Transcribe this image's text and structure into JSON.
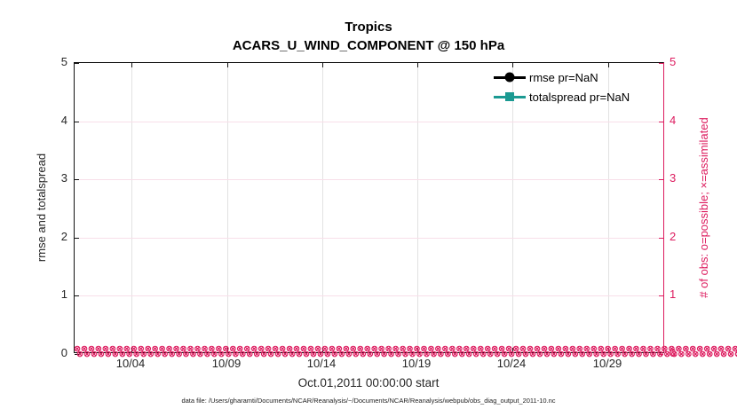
{
  "figure": {
    "title_line1": "Tropics",
    "title_line2": "ACARS_U_WIND_COMPONENT @ 150 hPa",
    "xlabel": "Oct.01,2011 00:00:00 start",
    "ylabel_left": "rmse and totalspread",
    "ylabel_right": "# of obs: o=possible; ×=assimilated",
    "footer": "data file: /Users/gharamti/Documents/NCAR/Reanalysis/~/Documents/NCAR/Reanalysis/webpub/obs_diag_output_2011-10.nc",
    "legend": [
      {
        "label": "rmse pr=NaN",
        "color": "#000000",
        "marker": "filled-circle"
      },
      {
        "label": "totalspread pr=NaN",
        "color": "#1b9a92",
        "marker": "filled-square"
      }
    ],
    "colors": {
      "right_axis_pink": "#dd1c5f",
      "totalspread_teal": "#1b9a92",
      "vertical_grid": "#e2e2e2",
      "horizontal_grid": "#f8dfe9"
    },
    "obs_band": {
      "glyph": "⊗",
      "rows": 2,
      "per_row": 95
    }
  },
  "chart_data": {
    "type": "line",
    "title": "Tropics",
    "subtitle": "ACARS_U_WIND_COMPONENT @ 150 hPa",
    "xlabel": "Oct.01,2011 00:00:00 start",
    "ylabel_left": "rmse and totalspread",
    "ylabel_right": "# of obs: o=possible; ×=assimilated",
    "ylim_left": [
      0,
      5
    ],
    "ylim_right": [
      0,
      5
    ],
    "y_ticks_left": [
      0,
      1,
      2,
      3,
      4,
      5
    ],
    "y_ticks_right": [
      0,
      1,
      2,
      3,
      4,
      5
    ],
    "x_axis": {
      "start": "2011-10-01 00:00:00",
      "span_days": 31,
      "tick_days": [
        3,
        8,
        13,
        18,
        23,
        28
      ],
      "tick_labels": [
        "10/04",
        "10/09",
        "10/14",
        "10/19",
        "10/24",
        "10/29"
      ]
    },
    "grid": true,
    "legend_position": "upper-right-inside",
    "series": [
      {
        "name": "rmse pr=NaN",
        "axis": "left",
        "marker": "filled-circle",
        "color": "#000000",
        "values": "NaN - no curve drawn"
      },
      {
        "name": "totalspread pr=NaN",
        "axis": "left",
        "marker": "filled-square",
        "color": "#1b9a92",
        "values": "NaN - no curve drawn"
      },
      {
        "name": "# of obs possible (o)",
        "axis": "right",
        "marker": "o",
        "color": "#dd1c5f",
        "y_value": 0,
        "note": "dense markers at y=0 across the entire date range"
      },
      {
        "name": "# of obs assimilated (×)",
        "axis": "right",
        "marker": "x",
        "color": "#dd1c5f",
        "y_value": 0,
        "note": "dense markers at y=0 across the entire date range"
      }
    ]
  }
}
